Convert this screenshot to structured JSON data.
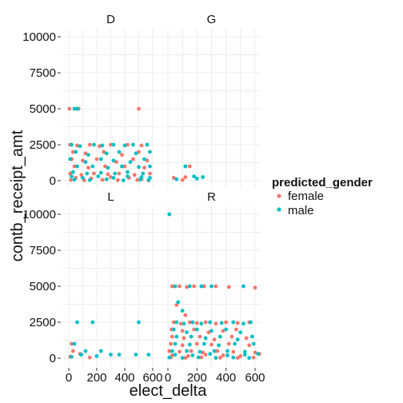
{
  "chart_data": {
    "type": "scatter",
    "xlabel": "elect_delta",
    "ylabel": "contb_receipt_amt",
    "xlim": [
      0,
      600
    ],
    "ylim": [
      0,
      10000
    ],
    "x_ticks": [
      "0",
      "200",
      "400",
      "600"
    ],
    "y_ticks": [
      "0",
      "2500",
      "5000",
      "7500",
      "10000"
    ],
    "facets": [
      "D",
      "G",
      "L",
      "R"
    ],
    "legend": {
      "title": "predicted_gender",
      "position": "right",
      "entries": [
        {
          "name": "female",
          "color": "#F8766D"
        },
        {
          "name": "male",
          "color": "#00BFC4"
        }
      ]
    },
    "grid": true,
    "series": [
      {
        "name": "female",
        "color": "#F8766D",
        "points": {
          "D": [
            [
              5,
              5000
            ],
            [
              70,
              5000
            ],
            [
              500,
              5000
            ],
            [
              10,
              2500
            ],
            [
              60,
              2450
            ],
            [
              150,
              2500
            ],
            [
              220,
              2400
            ],
            [
              300,
              2500
            ],
            [
              420,
              2500
            ],
            [
              520,
              2450
            ],
            [
              30,
              2000
            ],
            [
              120,
              1900
            ],
            [
              250,
              2000
            ],
            [
              380,
              1800
            ],
            [
              500,
              2000
            ],
            [
              20,
              1500
            ],
            [
              100,
              1400
            ],
            [
              200,
              1500
            ],
            [
              340,
              1300
            ],
            [
              460,
              1500
            ],
            [
              560,
              1400
            ],
            [
              40,
              1000
            ],
            [
              140,
              900
            ],
            [
              260,
              1000
            ],
            [
              400,
              1000
            ],
            [
              540,
              900
            ],
            [
              10,
              500
            ],
            [
              90,
              400
            ],
            [
              180,
              500
            ],
            [
              280,
              450
            ],
            [
              360,
              500
            ],
            [
              470,
              400
            ],
            [
              580,
              500
            ],
            [
              50,
              200
            ],
            [
              160,
              150
            ],
            [
              300,
              250
            ],
            [
              430,
              200
            ],
            [
              520,
              100
            ],
            [
              15,
              50
            ],
            [
              110,
              30
            ],
            [
              240,
              60
            ],
            [
              350,
              40
            ],
            [
              490,
              50
            ],
            [
              570,
              20
            ]
          ],
          "G": [
            [
              40,
              200
            ],
            [
              120,
              250
            ],
            [
              150,
              1000
            ],
            [
              100,
              50
            ]
          ],
          "L": [
            [
              20,
              1000
            ],
            [
              30,
              500
            ],
            [
              80,
              300
            ],
            [
              10,
              100
            ],
            [
              150,
              50
            ]
          ],
          "R": [
            [
              30,
              5000
            ],
            [
              80,
              5000
            ],
            [
              130,
              4950
            ],
            [
              180,
              5000
            ],
            [
              250,
              5000
            ],
            [
              330,
              5000
            ],
            [
              420,
              4950
            ],
            [
              600,
              4900
            ],
            [
              60,
              3700
            ],
            [
              120,
              3000
            ],
            [
              40,
              2500
            ],
            [
              90,
              2400
            ],
            [
              150,
              2500
            ],
            [
              200,
              2450
            ],
            [
              260,
              2500
            ],
            [
              330,
              2400
            ],
            [
              400,
              2500
            ],
            [
              480,
              2450
            ],
            [
              560,
              2500
            ],
            [
              25,
              2000
            ],
            [
              100,
              1900
            ],
            [
              180,
              2000
            ],
            [
              280,
              1800
            ],
            [
              380,
              1900
            ],
            [
              470,
              2000
            ],
            [
              30,
              1500
            ],
            [
              110,
              1400
            ],
            [
              220,
              1500
            ],
            [
              320,
              1300
            ],
            [
              440,
              1500
            ],
            [
              540,
              1400
            ],
            [
              20,
              1000
            ],
            [
              100,
              900
            ],
            [
              200,
              1000
            ],
            [
              300,
              950
            ],
            [
              420,
              1000
            ],
            [
              560,
              900
            ],
            [
              10,
              500
            ],
            [
              80,
              450
            ],
            [
              160,
              500
            ],
            [
              240,
              400
            ],
            [
              340,
              500
            ],
            [
              450,
              450
            ],
            [
              600,
              400
            ],
            [
              30,
              200
            ],
            [
              140,
              150
            ],
            [
              260,
              250
            ],
            [
              380,
              200
            ],
            [
              500,
              150
            ],
            [
              630,
              300
            ],
            [
              20,
              50
            ],
            [
              120,
              30
            ],
            [
              230,
              60
            ],
            [
              360,
              40
            ],
            [
              480,
              20
            ],
            [
              590,
              50
            ]
          ]
        }
      },
      {
        "name": "male",
        "color": "#00BFC4",
        "points": {
          "D": [
            [
              40,
              5000
            ],
            [
              60,
              5000
            ],
            [
              20,
              2500
            ],
            [
              80,
              2400
            ],
            [
              180,
              2500
            ],
            [
              240,
              2450
            ],
            [
              320,
              2500
            ],
            [
              400,
              2450
            ],
            [
              460,
              2500
            ],
            [
              560,
              2500
            ],
            [
              50,
              2000
            ],
            [
              140,
              1800
            ],
            [
              270,
              1900
            ],
            [
              360,
              2000
            ],
            [
              480,
              1900
            ],
            [
              580,
              2000
            ],
            [
              10,
              1500
            ],
            [
              120,
              1300
            ],
            [
              230,
              1500
            ],
            [
              320,
              1400
            ],
            [
              440,
              1300
            ],
            [
              540,
              1500
            ],
            [
              60,
              1000
            ],
            [
              170,
              1000
            ],
            [
              280,
              900
            ],
            [
              380,
              1000
            ],
            [
              500,
              950
            ],
            [
              580,
              1000
            ],
            [
              30,
              600
            ],
            [
              130,
              500
            ],
            [
              230,
              550
            ],
            [
              330,
              500
            ],
            [
              420,
              600
            ],
            [
              530,
              500
            ],
            [
              20,
              300
            ],
            [
              100,
              200
            ],
            [
              210,
              300
            ],
            [
              320,
              200
            ],
            [
              420,
              300
            ],
            [
              520,
              250
            ],
            [
              580,
              200
            ],
            [
              40,
              80
            ],
            [
              150,
              40
            ],
            [
              270,
              100
            ],
            [
              390,
              30
            ],
            [
              510,
              80
            ],
            [
              570,
              50
            ]
          ],
          "G": [
            [
              120,
              1000
            ],
            [
              180,
              300
            ],
            [
              200,
              150
            ],
            [
              60,
              100
            ],
            [
              240,
              250
            ]
          ],
          "L": [
            [
              60,
              2500
            ],
            [
              170,
              2500
            ],
            [
              500,
              2500
            ],
            [
              40,
              1000
            ],
            [
              120,
              500
            ],
            [
              230,
              500
            ],
            [
              90,
              250
            ],
            [
              300,
              250
            ],
            [
              360,
              250
            ],
            [
              480,
              250
            ],
            [
              570,
              250
            ],
            [
              20,
              100
            ],
            [
              200,
              150
            ]
          ],
          "R": [
            [
              10,
              10000
            ],
            [
              50,
              5000
            ],
            [
              150,
              5000
            ],
            [
              230,
              5000
            ],
            [
              300,
              5000
            ],
            [
              520,
              5000
            ],
            [
              70,
              3900
            ],
            [
              100,
              3300
            ],
            [
              60,
              2500
            ],
            [
              110,
              2400
            ],
            [
              170,
              2500
            ],
            [
              230,
              2400
            ],
            [
              290,
              2500
            ],
            [
              370,
              2450
            ],
            [
              450,
              2500
            ],
            [
              520,
              2400
            ],
            [
              570,
              2500
            ],
            [
              40,
              2000
            ],
            [
              130,
              1800
            ],
            [
              200,
              2000
            ],
            [
              300,
              1900
            ],
            [
              400,
              2000
            ],
            [
              500,
              1800
            ],
            [
              60,
              1500
            ],
            [
              160,
              1500
            ],
            [
              260,
              1400
            ],
            [
              360,
              1500
            ],
            [
              480,
              1300
            ],
            [
              580,
              1500
            ],
            [
              50,
              1000
            ],
            [
              150,
              950
            ],
            [
              250,
              1000
            ],
            [
              350,
              900
            ],
            [
              460,
              1000
            ],
            [
              590,
              1000
            ],
            [
              30,
              500
            ],
            [
              130,
              500
            ],
            [
              220,
              450
            ],
            [
              320,
              500
            ],
            [
              410,
              500
            ],
            [
              530,
              450
            ],
            [
              620,
              300
            ],
            [
              50,
              250
            ],
            [
              170,
              200
            ],
            [
              290,
              300
            ],
            [
              410,
              200
            ],
            [
              530,
              250
            ],
            [
              10,
              50
            ],
            [
              100,
              20
            ],
            [
              210,
              60
            ],
            [
              330,
              30
            ],
            [
              450,
              50
            ],
            [
              560,
              20
            ]
          ]
        }
      }
    ]
  }
}
